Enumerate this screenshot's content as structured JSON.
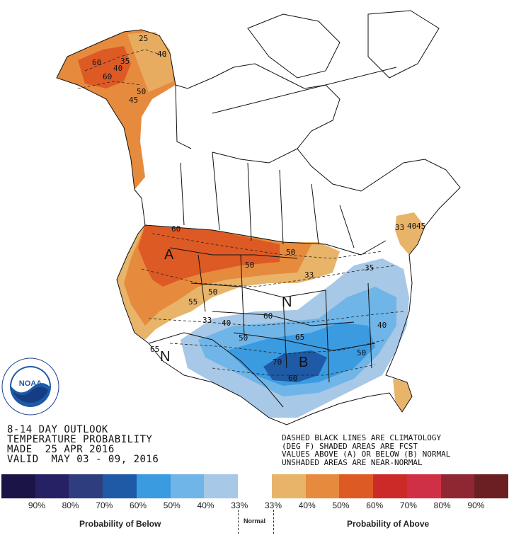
{
  "header": {
    "line1": "8-14 DAY OUTLOOK",
    "line2": "TEMPERATURE PROBABILITY",
    "line3": "MADE  25 APR 2016",
    "line4": "VALID  MAY 03 - 09, 2016"
  },
  "notes": {
    "line1": "DASHED BLACK LINES ARE CLIMATOLOGY",
    "line2": "(DEG F) SHADED AREAS ARE FCST",
    "line3": "VALUES ABOVE (A) OR BELOW (B) NORMAL",
    "line4": "UNSHADED AREAS ARE NEAR-NORMAL"
  },
  "logo": {
    "text": "NOAA",
    "ring_text": "NATIONAL OCEANIC AND ATMOSPHERIC ADMINISTRATION · U.S. DEPARTMENT OF COMMERCE"
  },
  "map_labels": {
    "above_a": "A",
    "below_b": "B",
    "normal_n1": "N",
    "normal_n2": "N",
    "contours": [
      "25",
      "40",
      "40",
      "60",
      "60",
      "35",
      "50",
      "45",
      "60",
      "50",
      "33",
      "55",
      "50",
      "33",
      "40",
      "50",
      "60",
      "65",
      "65",
      "70",
      "60",
      "40",
      "50",
      "33",
      "40",
      "50",
      "35",
      "45"
    ]
  },
  "legend": {
    "colors": [
      "#1b1446",
      "#262064",
      "#2e3d7e",
      "#1e5aa6",
      "#3b9be0",
      "#6fb5e8",
      "#a7c8e6",
      "#ffffff",
      "#e8b46a",
      "#e68b3e",
      "#de5a24",
      "#cc2a28",
      "#d03046",
      "#8f2733",
      "#6b1f22"
    ],
    "ticks": [
      "90%",
      "80%",
      "70%",
      "60%",
      "50%",
      "40%",
      "33%",
      "33%",
      "40%",
      "50%",
      "60%",
      "70%",
      "80%",
      "90%"
    ],
    "below_label": "Probability of Below",
    "normal_label": "Normal",
    "above_label": "Probability of Above"
  }
}
